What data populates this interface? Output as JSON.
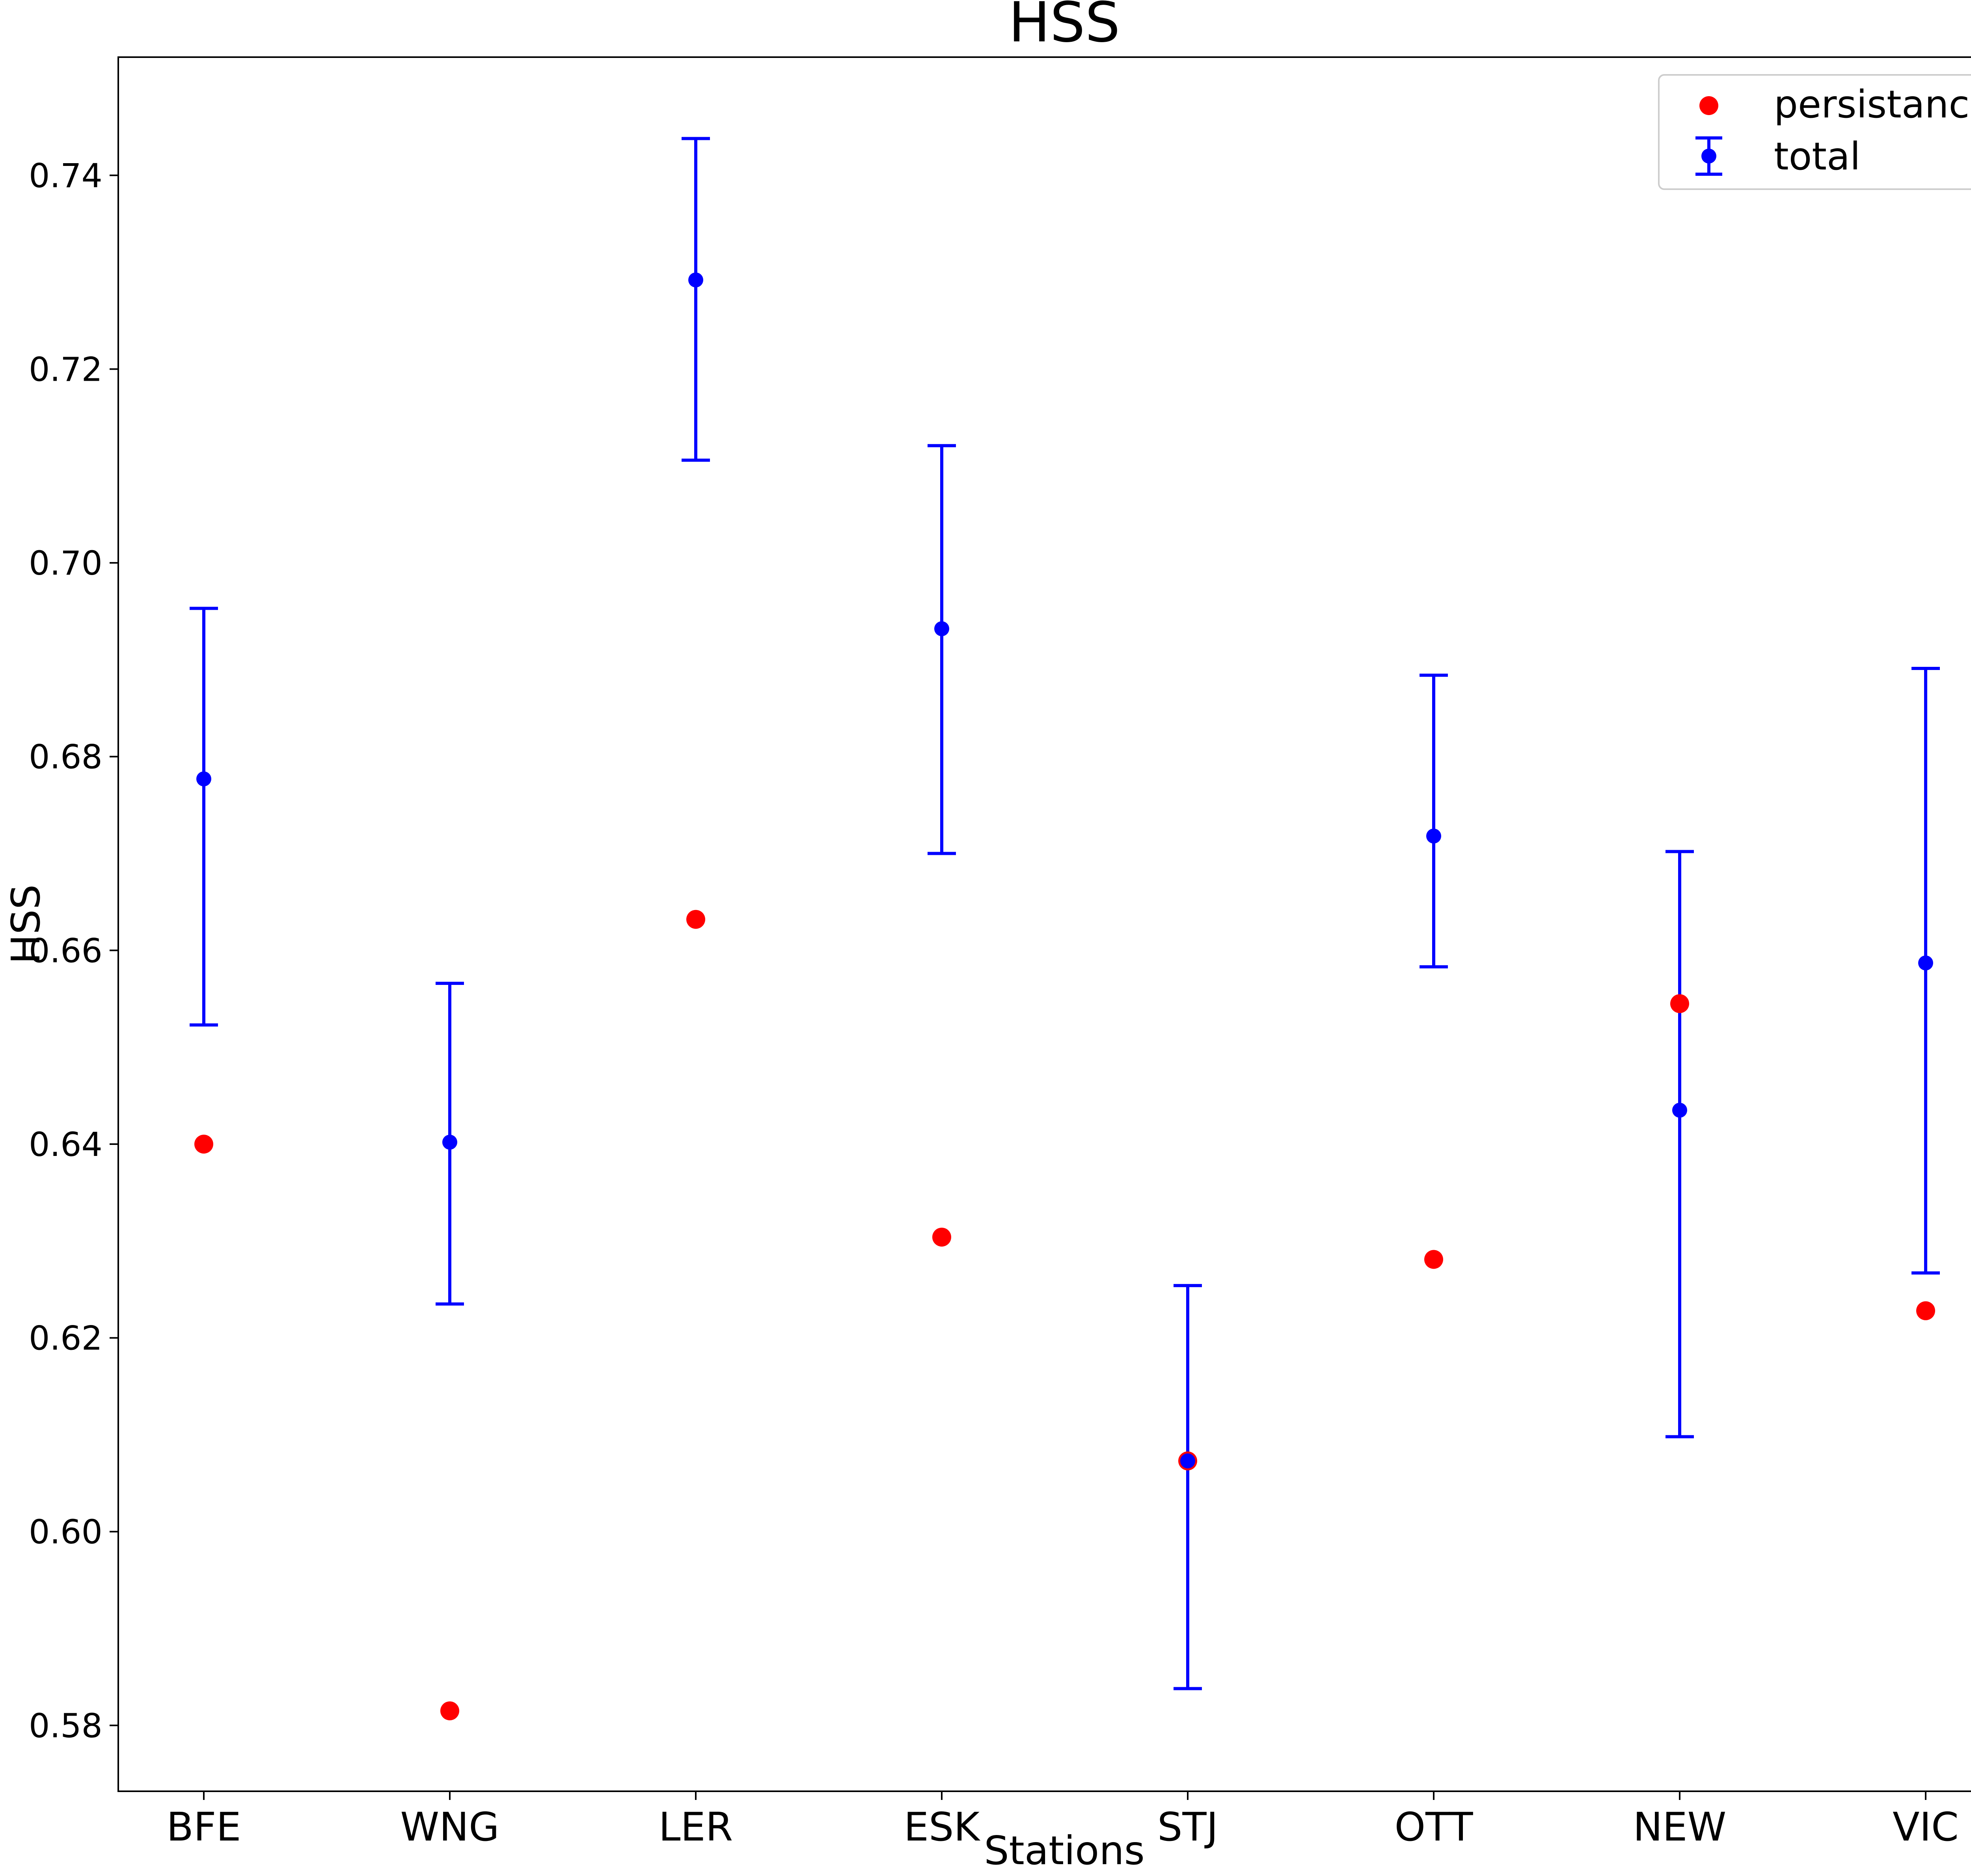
{
  "chart_data": {
    "type": "scatter",
    "title": "HSS",
    "xlabel": "Stations",
    "ylabel": "HSS",
    "categories": [
      "BFE",
      "WNG",
      "LER",
      "ESK",
      "STJ",
      "OTT",
      "NEW",
      "VIC"
    ],
    "ylim": [
      0.5732,
      0.7522
    ],
    "yticks": [
      0.58,
      0.6,
      0.62,
      0.64,
      0.66,
      0.68,
      0.7,
      0.72,
      0.74
    ],
    "ytick_labels": [
      "0.58",
      "0.60",
      "0.62",
      "0.64",
      "0.66",
      "0.68",
      "0.70",
      "0.72",
      "0.74"
    ],
    "grid": false,
    "legend_position": "top-right",
    "series": [
      {
        "name": "persistance",
        "color": "#ff0000",
        "values": [
          0.64,
          0.5815,
          0.6632,
          0.6304,
          0.6073,
          0.6281,
          0.6545,
          0.6228
        ]
      },
      {
        "name": "total",
        "color": "#0000ff",
        "values": [
          0.6777,
          0.6402,
          0.7292,
          0.6932,
          0.6073,
          0.6718,
          0.6435,
          0.6587
        ],
        "err_low": [
          0.6523,
          0.6235,
          0.7106,
          0.67,
          0.5838,
          0.6583,
          0.6098,
          0.6267
        ],
        "err_high": [
          0.6953,
          0.6566,
          0.7438,
          0.7121,
          0.6254,
          0.6884,
          0.6702,
          0.6891
        ]
      }
    ]
  }
}
